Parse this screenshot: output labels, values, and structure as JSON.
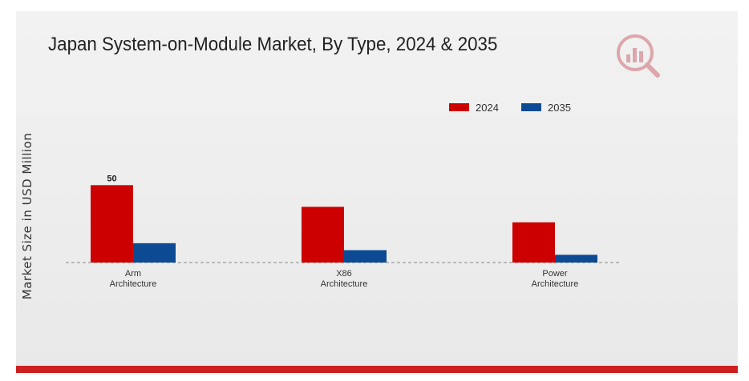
{
  "chart_data": {
    "type": "bar",
    "title": "Japan System-on-Module Market, By Type, 2024 & 2035",
    "ylabel": "Market Size in USD Million",
    "xlabel": "",
    "categories": [
      "Arm\nArchitecture",
      "X86\nArchitecture",
      "Power\nArchitecture"
    ],
    "series": [
      {
        "name": "2024",
        "values": [
          50,
          36,
          26
        ],
        "color": "#cc0000"
      },
      {
        "name": "2035",
        "values": [
          12.5,
          8,
          5
        ],
        "color": "#0d4a94"
      }
    ],
    "data_labels": [
      {
        "series": 0,
        "index": 0,
        "text": "50"
      }
    ],
    "ylim": [
      0,
      60
    ],
    "grid": false,
    "legend_position": "top-right"
  },
  "logo": {
    "icon": "bar-chart-magnifier-logo",
    "color": "#b8202a"
  },
  "footer_bar_color": "#cc1f1f"
}
